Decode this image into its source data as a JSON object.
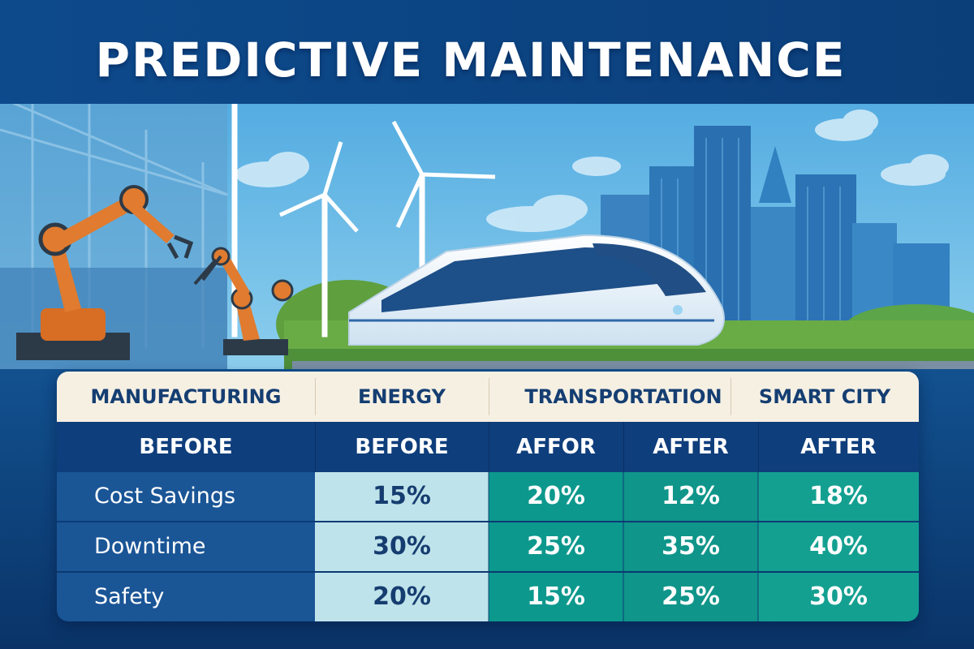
{
  "title": "PREDICTIVE MAINTENANCE",
  "colors": {
    "title_band": "#0e4a8a",
    "sky": "#5fb6e4",
    "category_row": "#f6f0e3",
    "header_row": "#0f3e7c",
    "label_column": "#1a5596",
    "light_cells": "#bfe3ea",
    "teal_cells": "#0f958a",
    "robot_arm": "#e07b2f"
  },
  "scene": {
    "icons": [
      "robot-arm-icon",
      "wind-turbine-icon",
      "bullet-train-icon",
      "city-skyline-icon"
    ]
  },
  "table": {
    "categories": [
      "MANUFACTURING",
      "ENERGY",
      "TRANSPORTATION",
      "SMART CITY"
    ],
    "subheaders": [
      "BEFORE",
      "BEFORE",
      "AFFOR",
      "AFTER",
      "AFTER"
    ],
    "rows": [
      {
        "label": "Cost Savings",
        "values": [
          "15%",
          "20%",
          "12%",
          "18%"
        ]
      },
      {
        "label": "Downtime",
        "values": [
          "30%",
          "25%",
          "35%",
          "40%"
        ]
      },
      {
        "label": "Safety",
        "values": [
          "20%",
          "15%",
          "25%",
          "30%"
        ]
      }
    ]
  }
}
